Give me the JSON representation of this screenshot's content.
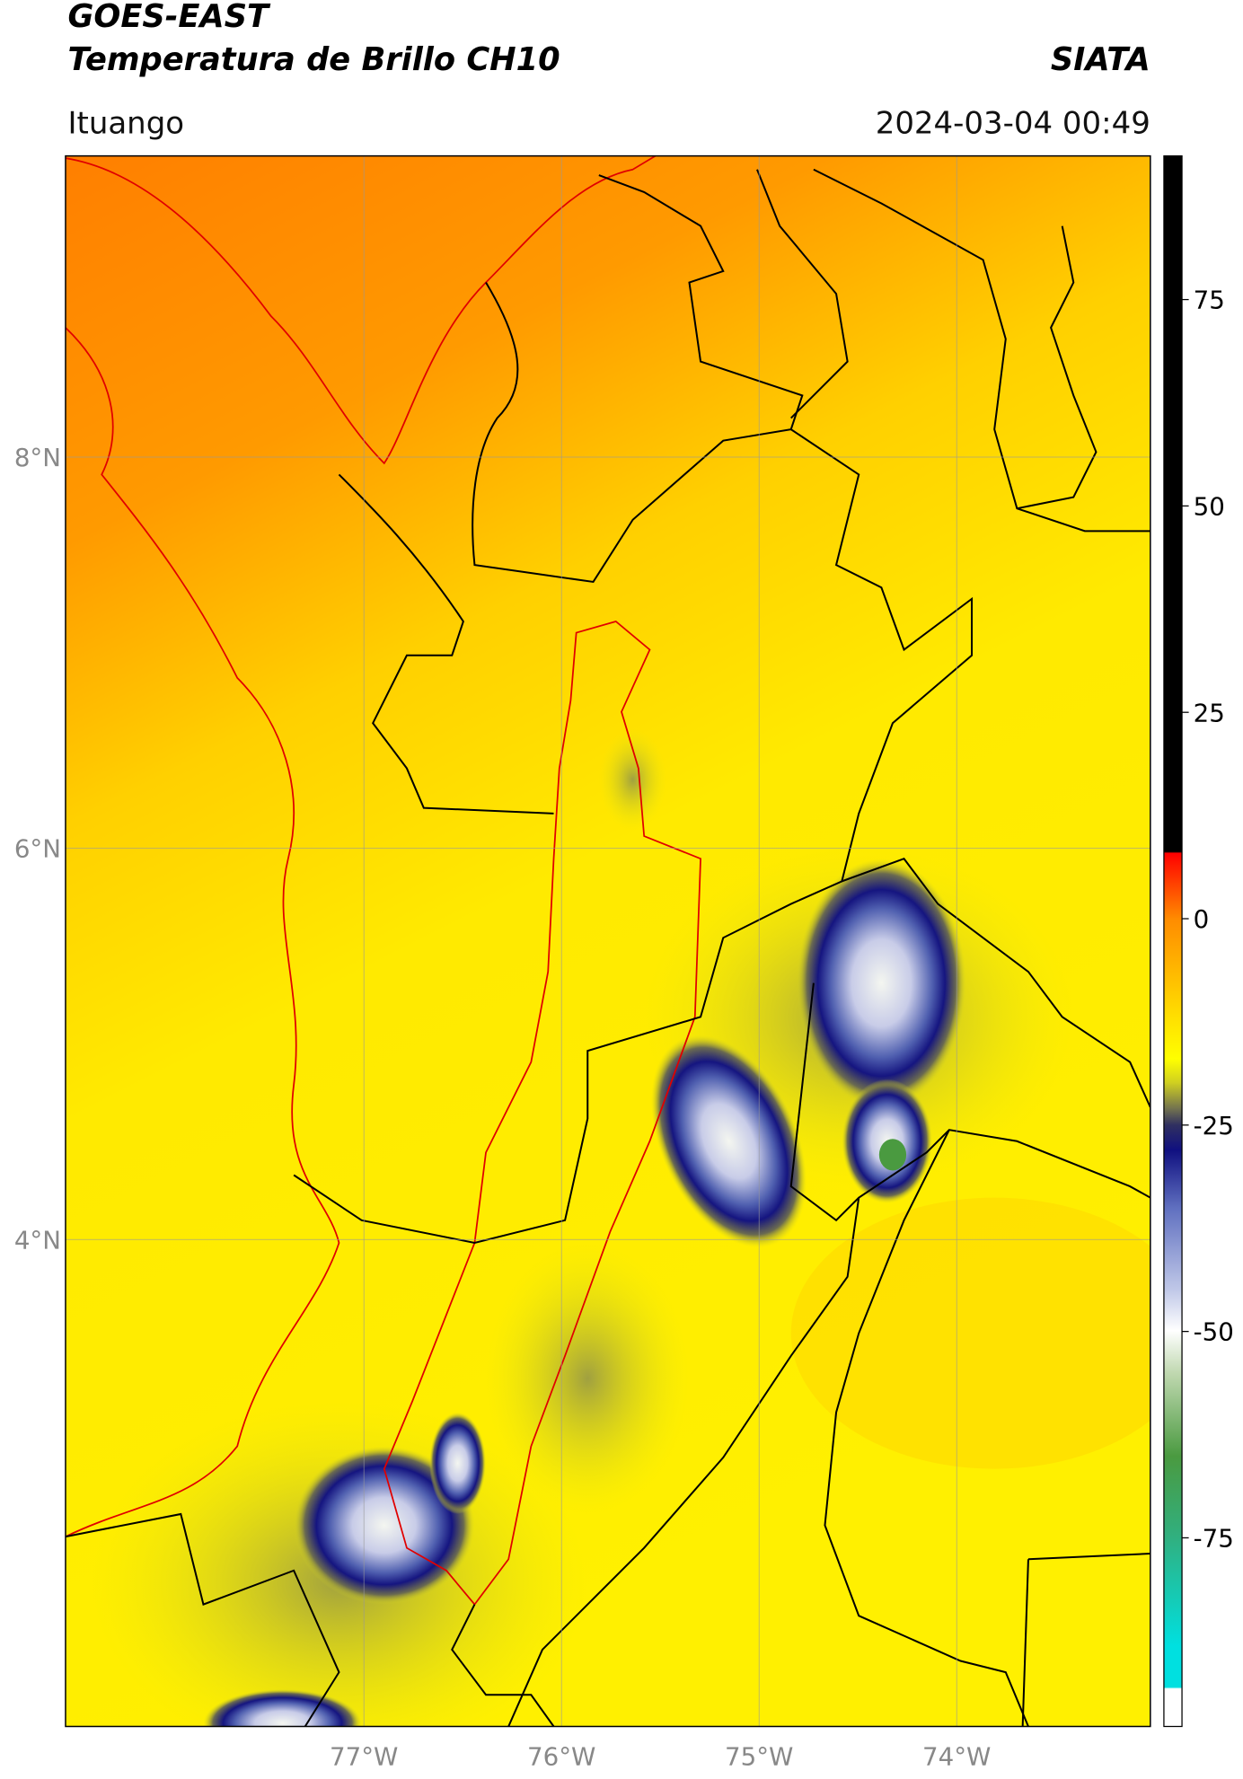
{
  "header": {
    "title_line1": "GOES-EAST",
    "title_line2": "Temperatura de Brillo CH10",
    "brand": "SIATA",
    "location": "Ituango",
    "datetime": "2024-03-04 00:49"
  },
  "map": {
    "xlim": [
      -78.51,
      -73.02
    ],
    "ylim": [
      1.51,
      9.54
    ],
    "xticks": [
      {
        "value": -77,
        "label": "77°W"
      },
      {
        "value": -76,
        "label": "76°W"
      },
      {
        "value": -75,
        "label": "75°W"
      },
      {
        "value": -74,
        "label": "74°W"
      }
    ],
    "yticks": [
      {
        "value": 8,
        "label": "8°N"
      },
      {
        "value": 6,
        "label": "6°N"
      },
      {
        "value": 4,
        "label": "4°N"
      }
    ]
  },
  "colorbar": {
    "lim": [
      -97.85,
      92.4
    ],
    "ticks": [
      75,
      50,
      25,
      0,
      -25,
      -50,
      -75
    ]
  }
}
